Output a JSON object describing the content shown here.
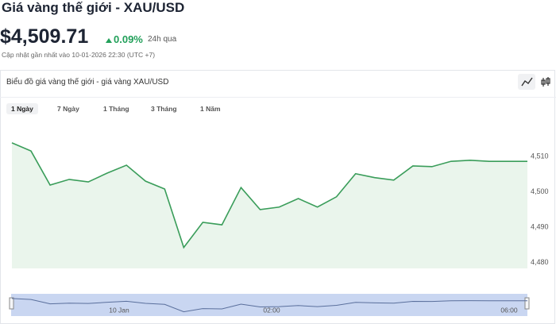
{
  "header": {
    "title": "Giá vàng thế giới - XAU/USD",
    "price": "$4,509.71",
    "change": "0.09%",
    "period": "24h qua",
    "updated": "Cập nhật gần nhất vào 10-01-2026 22:30 (UTC +7)"
  },
  "panel": {
    "title": "Biểu đồ giá vàng thế giới - giá vàng XAU/USD",
    "tabs": [
      "1 Ngày",
      "7 Ngày",
      "1 Tháng",
      "3 Tháng",
      "1 Năm"
    ]
  },
  "chart_data": {
    "type": "area",
    "color": "#3a9d5a",
    "categories": [
      null,
      null,
      null,
      null,
      null,
      null,
      null,
      null,
      null,
      null,
      null,
      null,
      null,
      null,
      null,
      null,
      null,
      null,
      null,
      null,
      null,
      null,
      null,
      null,
      null,
      null,
      null,
      null
    ],
    "values": [
      4513.8,
      4511.5,
      4501.9,
      4503.5,
      4502.8,
      4505.3,
      4507.5,
      4503.0,
      4500.8,
      4484.3,
      4491.4,
      4490.7,
      4501.2,
      4495.0,
      4495.7,
      4498.1,
      4495.7,
      4498.6,
      4505.1,
      4504.0,
      4503.3,
      4507.3,
      4507.1,
      4508.6,
      4508.9,
      4508.6,
      4508.6,
      4508.6
    ],
    "ylim": [
      4478.4,
      4520.5
    ],
    "yticks": [
      {
        "value": 4480,
        "label": "4,480"
      },
      {
        "value": 4490,
        "label": "4,490"
      },
      {
        "value": 4500,
        "label": "4,500"
      },
      {
        "value": 4510,
        "label": "4,510"
      }
    ]
  },
  "navigator": {
    "labels": [
      "10 Jan",
      "02:00",
      "06:00"
    ]
  }
}
